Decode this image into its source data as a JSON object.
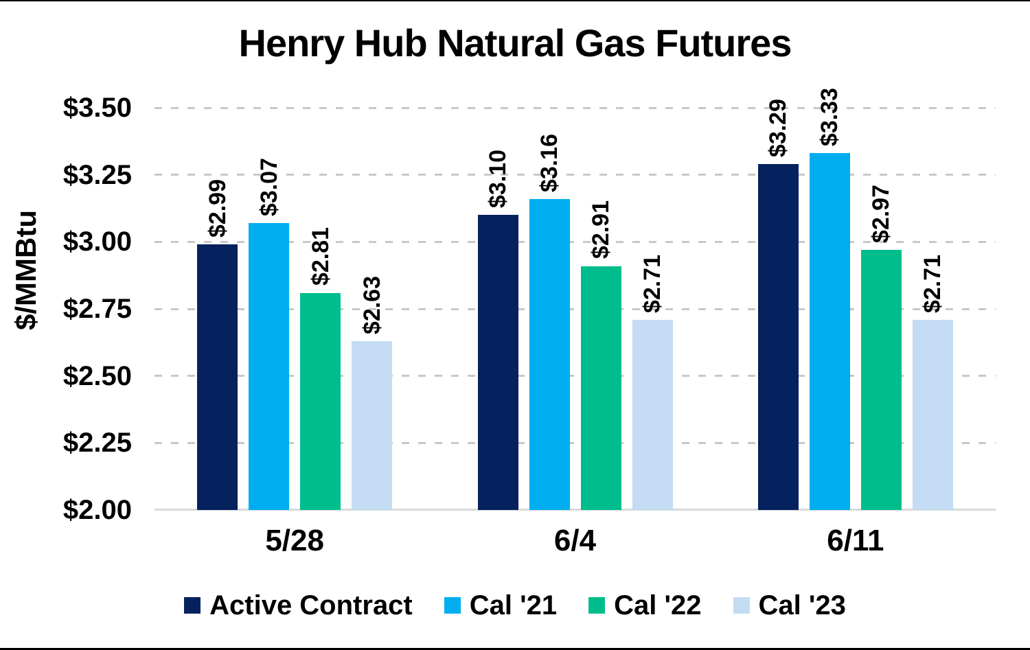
{
  "chart_data": {
    "type": "bar",
    "title": "Henry Hub Natural Gas Futures",
    "ylabel": "$/MMBtu",
    "xlabel": "",
    "categories": [
      "5/28",
      "6/4",
      "6/11"
    ],
    "series": [
      {
        "name": "Active Contract",
        "color": "#05215e",
        "values": [
          2.99,
          3.1,
          3.29
        ],
        "labels": [
          "$2.99",
          "$3.10",
          "$3.29"
        ]
      },
      {
        "name": "Cal '21",
        "color": "#00aeef",
        "values": [
          3.07,
          3.16,
          3.33
        ],
        "labels": [
          "$3.07",
          "$3.16",
          "$3.33"
        ]
      },
      {
        "name": "Cal '22",
        "color": "#00bd8d",
        "values": [
          2.81,
          2.91,
          2.97
        ],
        "labels": [
          "$2.81",
          "$2.91",
          "$2.97"
        ]
      },
      {
        "name": "Cal '23",
        "color": "#c4dcf3",
        "values": [
          2.63,
          2.71,
          2.71
        ],
        "labels": [
          "$2.63",
          "$2.71",
          "$2.71"
        ]
      }
    ],
    "y_ticks": [
      "$3.50",
      "$3.25",
      "$3.00",
      "$2.75",
      "$2.50",
      "$2.25",
      "$2.00"
    ],
    "y_tick_values": [
      3.5,
      3.25,
      3.0,
      2.75,
      2.5,
      2.25,
      2.0
    ],
    "ylim": [
      2.0,
      3.5
    ],
    "grid": "horizontal-dashed",
    "legend_position": "bottom"
  },
  "style_colors": {
    "gridline": "#c8c8c8",
    "axis_line": "#d9d9d9",
    "text": "#000000",
    "border": "#000000"
  }
}
